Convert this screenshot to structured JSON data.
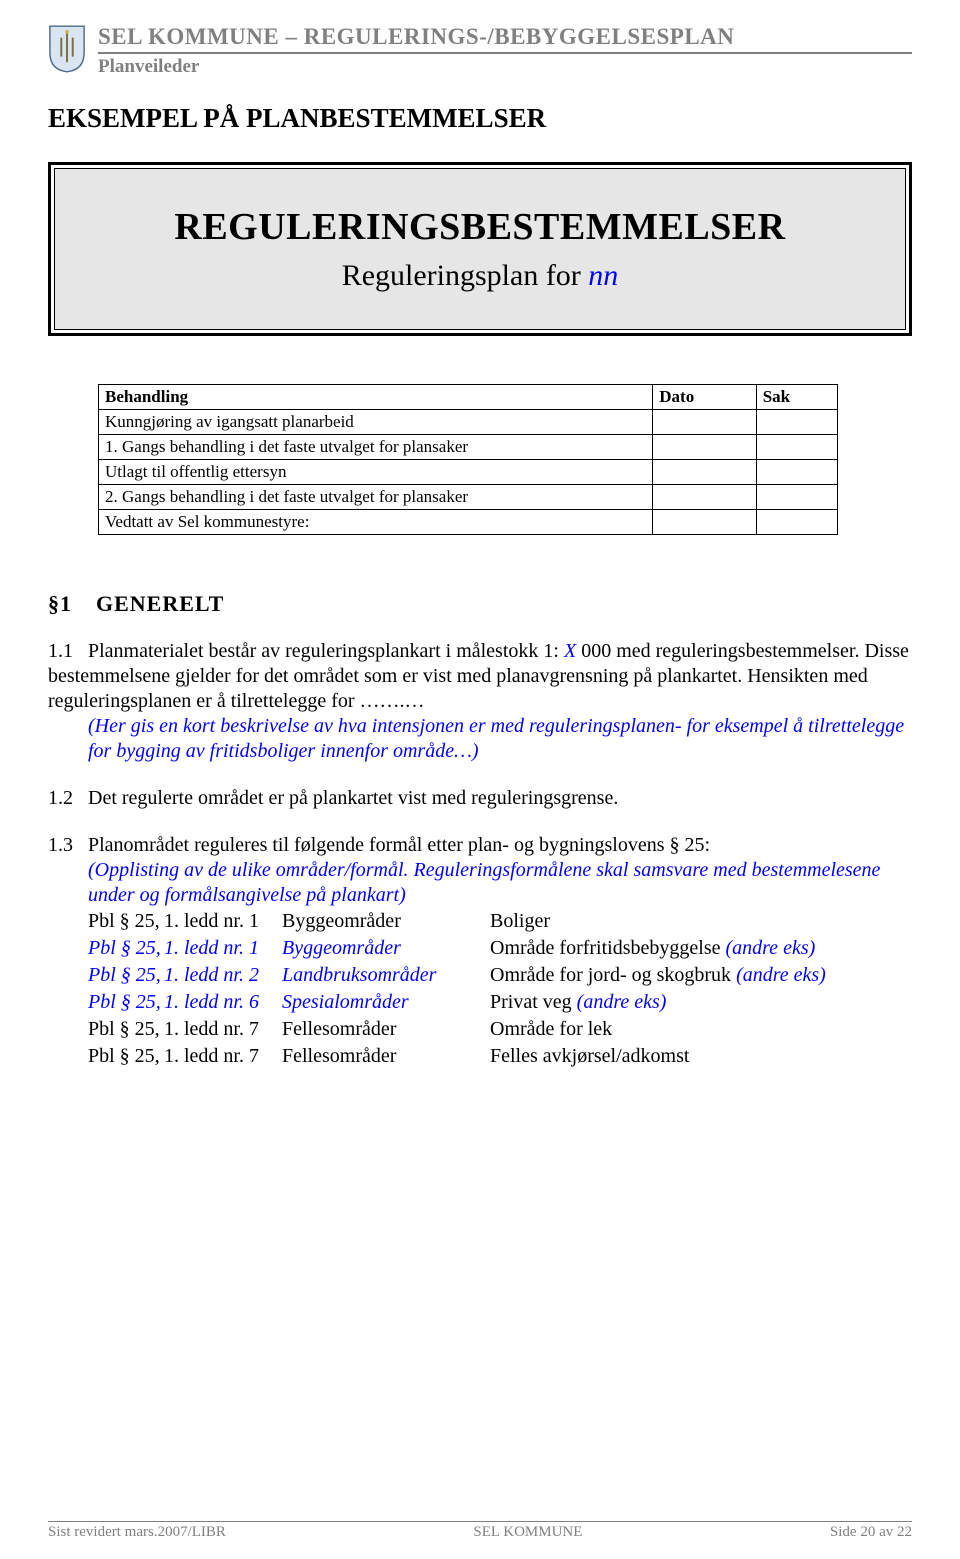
{
  "header": {
    "title": "SEL KOMMUNE – REGULERINGS-/BEBYGGELSESPLAN",
    "subtitle": "Planveileder"
  },
  "section_example": "EKSEMPEL PÅ PLANBESTEMMELSER",
  "title_box": {
    "main": "REGULERINGSBESTEMMELSER",
    "sub_prefix": "Reguleringsplan for ",
    "sub_nn": "nn"
  },
  "behandling": {
    "headers": [
      "Behandling",
      "Dato",
      "Sak"
    ],
    "rows": [
      [
        "Kunngjøring av igangsatt planarbeid",
        "",
        ""
      ],
      [
        "1.   Gangs behandling i det faste utvalget for plansaker",
        "",
        ""
      ],
      [
        "Utlagt til offentlig ettersyn",
        "",
        ""
      ],
      [
        "2.   Gangs behandling i det faste utvalget for plansaker",
        "",
        ""
      ],
      [
        "Vedtatt av Sel kommunestyre:",
        "",
        ""
      ]
    ]
  },
  "generelt": {
    "sym": "§1",
    "label": "GENERELT"
  },
  "p11": {
    "label": "1.1",
    "t1": "Planmaterialet består av reguleringsplankart i målestokk 1: ",
    "x": "X",
    "t2": " 000 med reguleringsbestemmelser. Disse bestemmelsene gjelder for det området som er vist med planavgrensning på plankartet. Hensikten med reguleringsplanen er å tilrettelegge for …….… ",
    "italic": "(Her gis en kort beskrivelse av hva intensjonen er med reguleringsplanen- for eksempel å tilrettelegge for bygging av fritidsboliger innenfor område…)"
  },
  "p12": {
    "label": "1.2",
    "text": "Det regulerte området er på plankartet vist med reguleringsgrense."
  },
  "p13": {
    "label": "1.3",
    "lead": "Planområdet reguleres til følgende formål etter plan- og bygningslovens § 25:",
    "sub_italic": "(Opplisting av de ulike områder/formål. Reguleringsformålene skal samsvare med bestemmelesene under og formålsangivelse på plankart)",
    "rows": [
      {
        "c1": "Pbl § 25,",
        "c2": "1. ledd nr. 1",
        "c3": "Byggeområder",
        "c4": "Boliger",
        "c1_i": false,
        "c2_i": false,
        "c3_i": false,
        "c4_i": ""
      },
      {
        "c1": "Pbl § 25,",
        "c2": "1. ledd nr. 1",
        "c3": "Byggeområder",
        "c4": "Område forfritidsbebyggelse ",
        "c1_i": true,
        "c2_i": true,
        "c3_i": true,
        "c4_i": "(andre eks)"
      },
      {
        "c1": "Pbl § 25,",
        "c2": "1. ledd nr. 2",
        "c3": "Landbruksområder",
        "c4": "Område for jord- og skogbruk ",
        "c1_i": true,
        "c2_i": true,
        "c3_i": true,
        "c4_i": "(andre eks)"
      },
      {
        "c1": "Pbl § 25,",
        "c2": "1. ledd nr. 6",
        "c3": "Spesialområder",
        "c4": "Privat veg ",
        "c1_i": true,
        "c2_i": true,
        "c3_i": true,
        "c4_i": "(andre eks)"
      },
      {
        "c1": "Pbl § 25,",
        "c2": "1. ledd nr. 7",
        "c3": "Fellesområder",
        "c4": "Område for lek",
        "c1_i": false,
        "c2_i": false,
        "c3_i": false,
        "c4_i": ""
      },
      {
        "c1": "Pbl § 25,",
        "c2": "1. ledd nr. 7",
        "c3": "Fellesområder",
        "c4": "Felles avkjørsel/adkomst",
        "c1_i": false,
        "c2_i": false,
        "c3_i": false,
        "c4_i": ""
      }
    ]
  },
  "footer": {
    "left": "Sist revidert mars.2007/LIBR",
    "center": "SEL KOMMUNE",
    "right": "Side 20 av 22"
  }
}
